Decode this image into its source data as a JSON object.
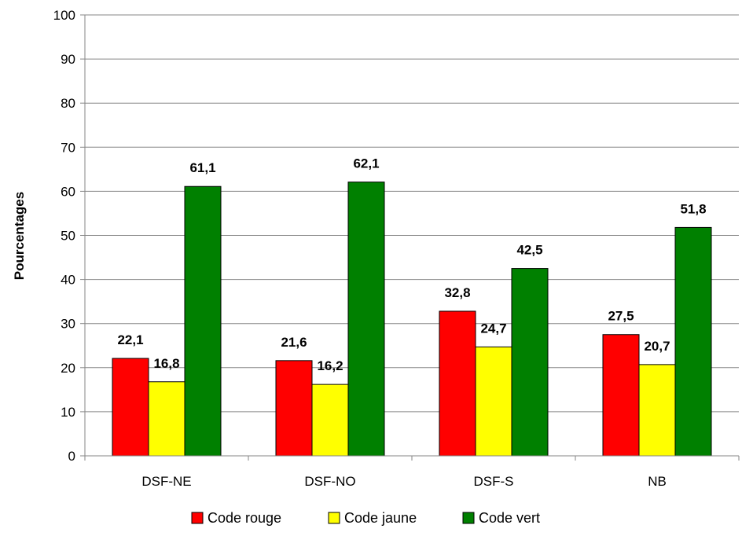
{
  "chart_data": {
    "type": "bar",
    "title": "",
    "xlabel": "",
    "ylabel": "Pourcentages",
    "ylim": [
      0,
      100
    ],
    "yticks": [
      0,
      10,
      20,
      30,
      40,
      50,
      60,
      70,
      80,
      90,
      100
    ],
    "grid": true,
    "legend_position": "bottom",
    "categories": [
      "DSF-NE",
      "DSF-NO",
      "DSF-S",
      "NB"
    ],
    "series": [
      {
        "name": "Code rouge",
        "color": "#ff0000",
        "values": [
          22.1,
          21.6,
          32.8,
          27.5
        ],
        "labels": [
          "22,1",
          "21,6",
          "32,8",
          "27,5"
        ]
      },
      {
        "name": "Code jaune",
        "color": "#ffff00",
        "values": [
          16.8,
          16.2,
          24.7,
          20.7
        ],
        "labels": [
          "16,8",
          "16,2",
          "24,7",
          "20,7"
        ]
      },
      {
        "name": "Code vert",
        "color": "#008000",
        "values": [
          61.1,
          62.1,
          42.5,
          51.8
        ],
        "labels": [
          "61,1",
          "62,1",
          "42,5",
          "51,8"
        ]
      }
    ]
  }
}
